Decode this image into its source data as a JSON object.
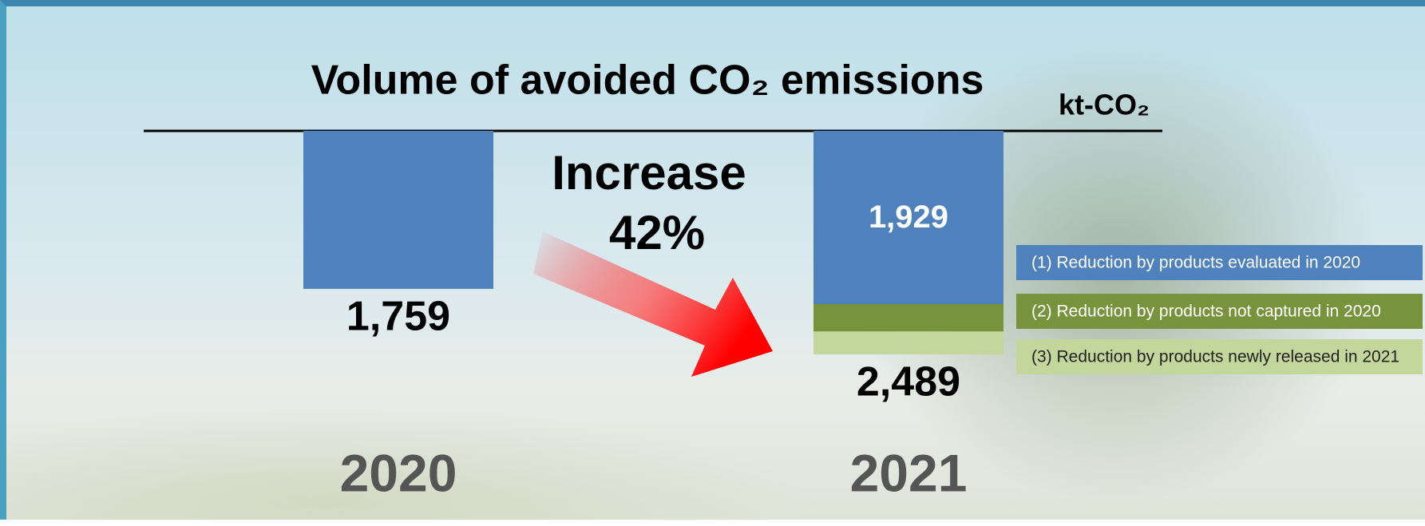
{
  "chart_data": {
    "type": "bar",
    "stacked": true,
    "title": "Volume of avoided CO₂ emissions",
    "unit": "kt-CO₂",
    "annotation": [
      "Increase",
      "42%"
    ],
    "categories": [
      "2020",
      "2021"
    ],
    "series": [
      {
        "name": "(1) Reduction by products evaluated in 2020",
        "color": "#4f81bd",
        "values": [
          1759,
          1929
        ],
        "value_labels": [
          null,
          "1,929"
        ]
      },
      {
        "name": "(2) Reduction by products not captured in 2020",
        "color": "#77933c",
        "values": [
          null,
          305
        ]
      },
      {
        "name": "(3) Reduction by products newly released in 2021",
        "color": "#c3d69b",
        "values": [
          null,
          255
        ]
      }
    ],
    "totals": [
      1759,
      2489
    ],
    "total_labels": [
      "1,759",
      "2,489"
    ]
  }
}
